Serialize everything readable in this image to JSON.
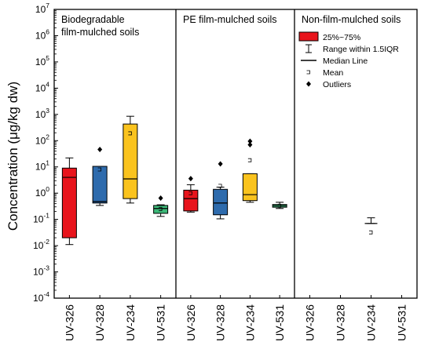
{
  "chart_data": {
    "type": "box",
    "ylabel": "Concentration (μg/kg dw)",
    "yscale": "log",
    "ylim": [
      0.0001,
      10000000
    ],
    "yticks": [
      {
        "value": 0.0001,
        "base": "10",
        "exp": "-4"
      },
      {
        "value": 0.001,
        "base": "10",
        "exp": "-3"
      },
      {
        "value": 0.01,
        "base": "10",
        "exp": "-2"
      },
      {
        "value": 0.1,
        "base": "10",
        "exp": "-1"
      },
      {
        "value": 1,
        "base": "10",
        "exp": "0"
      },
      {
        "value": 10,
        "base": "10",
        "exp": "1"
      },
      {
        "value": 100,
        "base": "10",
        "exp": "2"
      },
      {
        "value": 1000,
        "base": "10",
        "exp": "3"
      },
      {
        "value": 10000,
        "base": "10",
        "exp": "4"
      },
      {
        "value": 100000,
        "base": "10",
        "exp": "5"
      },
      {
        "value": 1000000,
        "base": "10",
        "exp": "6"
      },
      {
        "value": 10000000,
        "base": "10",
        "exp": "7"
      }
    ],
    "legend": {
      "placement": "top-right",
      "entries": [
        {
          "label": "25%~75%",
          "symbol": "box"
        },
        {
          "label": "Range within 1.5IQR",
          "symbol": "whisker"
        },
        {
          "label": "Median Line",
          "symbol": "line"
        },
        {
          "label": "Mean",
          "symbol": "square"
        },
        {
          "label": "Outliers",
          "symbol": "diamond"
        }
      ]
    },
    "panels": [
      {
        "title": [
          "Biodegradable",
          "film-mulched soils"
        ],
        "categories": [
          "UV-326",
          "UV-328",
          "UV-234",
          "UV-531"
        ],
        "boxes": [
          {
            "category": "UV-326",
            "color": "#e8141c",
            "whisker_low": 0.011,
            "q1": 0.02,
            "median": 4.0,
            "q3": 9.0,
            "whisker_high": 22,
            "mean": null,
            "outliers": []
          },
          {
            "category": "UV-328",
            "color": "#2e6bad",
            "whisker_low": 0.34,
            "q1": 0.42,
            "median": 0.48,
            "q3": 10.5,
            "whisker_high": 10.5,
            "mean": 8.0,
            "outliers": [
              46
            ]
          },
          {
            "category": "UV-234",
            "color": "#fac31e",
            "whisker_low": 0.42,
            "q1": 0.62,
            "median": 3.5,
            "q3": 430,
            "whisker_high": 850,
            "mean": 190,
            "outliers": []
          },
          {
            "category": "UV-531",
            "color": "#3cb878",
            "whisker_low": 0.13,
            "q1": 0.17,
            "median": 0.26,
            "q3": 0.34,
            "whisker_high": 0.36,
            "mean": 0.25,
            "outliers": [
              0.65
            ]
          }
        ]
      },
      {
        "title": [
          "PE film-mulched soils"
        ],
        "categories": [
          "UV-326",
          "UV-328",
          "UV-234",
          "UV-531"
        ],
        "boxes": [
          {
            "category": "UV-326",
            "color": "#e8141c",
            "whisker_low": 0.19,
            "q1": 0.21,
            "median": 0.62,
            "q3": 1.3,
            "whisker_high": 2.1,
            "mean": 1.0,
            "outliers": [
              3.6
            ]
          },
          {
            "category": "UV-328",
            "color": "#2e6bad",
            "whisker_low": 0.105,
            "q1": 0.15,
            "median": 0.42,
            "q3": 1.4,
            "whisker_high": 1.7,
            "mean": 1.9,
            "outliers": [
              13
            ]
          },
          {
            "category": "UV-234",
            "color": "#fac31e",
            "whisker_low": 0.45,
            "q1": 0.52,
            "median": 0.88,
            "q3": 5.5,
            "whisker_high": 5.5,
            "mean": 18,
            "outliers": [
              70,
              95
            ]
          },
          {
            "category": "UV-531",
            "color": "#3cb878",
            "whisker_low": 0.26,
            "q1": 0.29,
            "median": 0.33,
            "q3": 0.37,
            "whisker_high": 0.45,
            "mean": 0.33,
            "outliers": []
          }
        ]
      },
      {
        "title": [
          "Non-film-mulched soils"
        ],
        "categories": [
          "UV-326",
          "UV-328",
          "UV-234",
          "UV-531"
        ],
        "boxes": [
          {
            "category": "UV-234",
            "color": "#000000",
            "whisker_low": 0.07,
            "q1": 0.07,
            "median": 0.07,
            "q3": 0.07,
            "whisker_high": 0.115,
            "mean": 0.032,
            "outliers": [],
            "no_box": true
          }
        ]
      }
    ]
  }
}
